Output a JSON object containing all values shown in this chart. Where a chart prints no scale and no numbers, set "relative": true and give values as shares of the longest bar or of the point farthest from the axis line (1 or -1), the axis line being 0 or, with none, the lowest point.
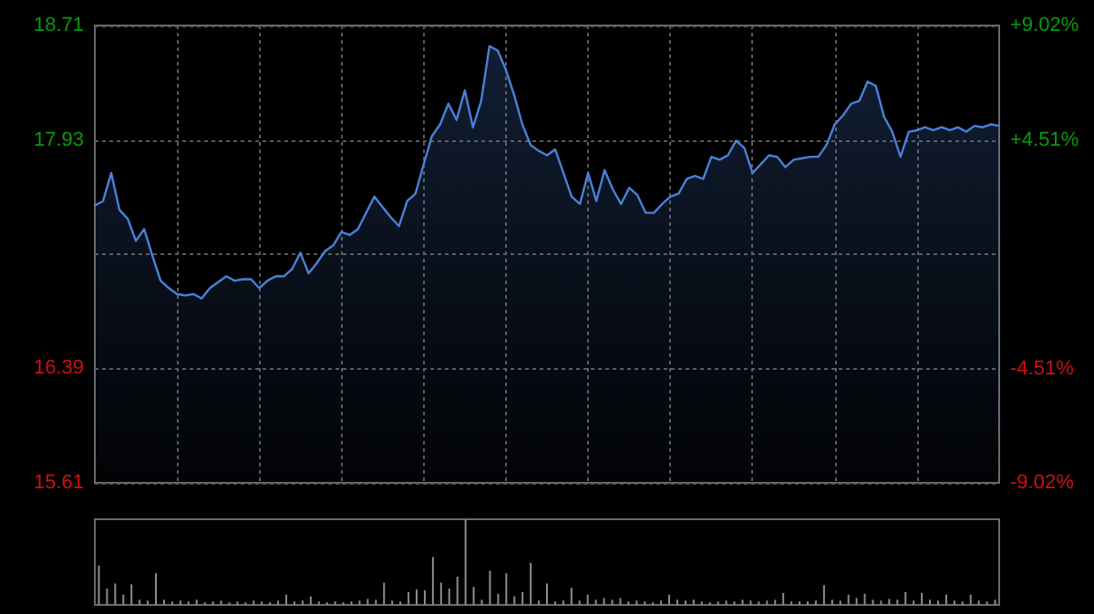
{
  "chart_data": [
    {
      "type": "area",
      "categories": [
        null,
        null,
        null,
        null,
        null,
        null,
        null,
        null,
        null,
        null,
        null,
        null,
        null,
        null,
        null,
        null,
        null,
        null,
        null,
        null,
        null,
        null,
        null,
        null,
        null,
        null,
        null,
        null,
        null,
        null,
        null,
        null,
        null,
        null,
        null,
        null,
        null,
        null,
        null,
        null,
        null,
        null,
        null,
        null,
        null,
        null,
        null,
        null,
        null,
        null,
        null,
        null,
        null,
        null,
        null,
        null,
        null,
        null,
        null,
        null,
        null,
        null,
        null,
        null,
        null,
        null,
        null,
        null,
        null,
        null,
        null,
        null,
        null,
        null,
        null,
        null,
        null,
        null,
        null,
        null,
        null,
        null,
        null,
        null,
        null,
        null,
        null,
        null,
        null,
        null,
        null,
        null,
        null,
        null,
        null,
        null,
        null,
        null,
        null,
        null,
        null,
        null,
        null,
        null,
        null,
        null,
        null,
        null,
        null,
        null,
        null
      ],
      "series": [
        {
          "color": "#4a80d8",
          "values": [
            17.49,
            17.52,
            17.71,
            17.46,
            17.4,
            17.25,
            17.33,
            17.15,
            16.98,
            16.93,
            16.89,
            16.88,
            16.89,
            16.86,
            16.93,
            16.97,
            17.01,
            16.98,
            16.99,
            16.99,
            16.93,
            16.98,
            17.01,
            17.01,
            17.06,
            17.17,
            17.03,
            17.1,
            17.18,
            17.22,
            17.31,
            17.29,
            17.33,
            17.44,
            17.55,
            17.48,
            17.41,
            17.35,
            17.52,
            17.57,
            17.77,
            17.96,
            18.04,
            18.18,
            18.07,
            18.27,
            18.02,
            18.2,
            18.57,
            18.54,
            18.41,
            18.24,
            18.04,
            17.9,
            17.86,
            17.83,
            17.87,
            17.71,
            17.55,
            17.5,
            17.71,
            17.52,
            17.73,
            17.6,
            17.5,
            17.61,
            17.56,
            17.44,
            17.44,
            17.5,
            17.55,
            17.57,
            17.67,
            17.69,
            17.67,
            17.82,
            17.8,
            17.83,
            17.93,
            17.88,
            17.71,
            17.77,
            17.83,
            17.82,
            17.75,
            17.8,
            17.81,
            17.82,
            17.82,
            17.9,
            18.04,
            18.1,
            18.18,
            18.2,
            18.33,
            18.3,
            18.09,
            17.99,
            17.82,
            17.99,
            18.0,
            18.02,
            18.0,
            18.02,
            18.0,
            18.02,
            17.99,
            18.03,
            18.02,
            18.04,
            18.03
          ]
        }
      ],
      "ylim": [
        15.61,
        18.71
      ],
      "yticks": [
        15.61,
        16.39,
        {
          "value": 17.16,
          "label": null
        },
        17.93,
        18.71
      ],
      "y2lim": [
        -9.02,
        9.02
      ],
      "y2ticks": [
        {
          "value": -9.02,
          "label": "-9.02%"
        },
        {
          "value": -4.51,
          "label": "-4.51%"
        },
        {
          "value": 0,
          "label": null
        },
        {
          "value": 4.51,
          "label": "+4.51%"
        },
        {
          "value": 9.02,
          "label": "+9.02%"
        }
      ],
      "grid": true
    },
    {
      "type": "bar",
      "relative": true,
      "color": "#8c8c8c",
      "categories": [
        null,
        null,
        null,
        null,
        null,
        null,
        null,
        null,
        null,
        null,
        null,
        null,
        null,
        null,
        null,
        null,
        null,
        null,
        null,
        null,
        null,
        null,
        null,
        null,
        null,
        null,
        null,
        null,
        null,
        null,
        null,
        null,
        null,
        null,
        null,
        null,
        null,
        null,
        null,
        null,
        null,
        null,
        null,
        null,
        null,
        null,
        null,
        null,
        null,
        null,
        null,
        null,
        null,
        null,
        null,
        null,
        null,
        null,
        null,
        null,
        null,
        null,
        null,
        null,
        null,
        null,
        null,
        null,
        null,
        null,
        null,
        null,
        null,
        null,
        null,
        null,
        null,
        null,
        null,
        null,
        null,
        null,
        null,
        null,
        null,
        null,
        null,
        null,
        null,
        null,
        null,
        null,
        null,
        null,
        null,
        null,
        null,
        null,
        null,
        null,
        null,
        null,
        null,
        null,
        null,
        null,
        null,
        null,
        null,
        null,
        null
      ],
      "values": [
        0.46,
        0.19,
        0.25,
        0.12,
        0.24,
        0.06,
        0.05,
        0.37,
        0.06,
        0.04,
        0.05,
        0.04,
        0.06,
        0.03,
        0.04,
        0.05,
        0.03,
        0.04,
        0.03,
        0.05,
        0.04,
        0.03,
        0.05,
        0.12,
        0.04,
        0.05,
        0.1,
        0.04,
        0.03,
        0.04,
        0.03,
        0.04,
        0.05,
        0.07,
        0.06,
        0.26,
        0.05,
        0.04,
        0.15,
        0.18,
        0.17,
        0.56,
        0.26,
        0.19,
        0.33,
        1,
        0.21,
        0.06,
        0.4,
        0.13,
        0.37,
        0.1,
        0.15,
        0.49,
        0.05,
        0.25,
        0.04,
        0.05,
        0.2,
        0.05,
        0.12,
        0.06,
        0.08,
        0.06,
        0.08,
        0.04,
        0.05,
        0.04,
        0.03,
        0.05,
        0.12,
        0.06,
        0.05,
        0.06,
        0.04,
        0.03,
        0.04,
        0.05,
        0.04,
        0.06,
        0.05,
        0.04,
        0.05,
        0.06,
        0.14,
        0.04,
        0.04,
        0.04,
        0.05,
        0.23,
        0.06,
        0.05,
        0.12,
        0.08,
        0.13,
        0.06,
        0.05,
        0.07,
        0.06,
        0.15,
        0.05,
        0.14,
        0.06,
        0.05,
        0.12,
        0.05,
        0.04,
        0.12,
        0.05,
        0.04,
        0.06
      ]
    }
  ]
}
